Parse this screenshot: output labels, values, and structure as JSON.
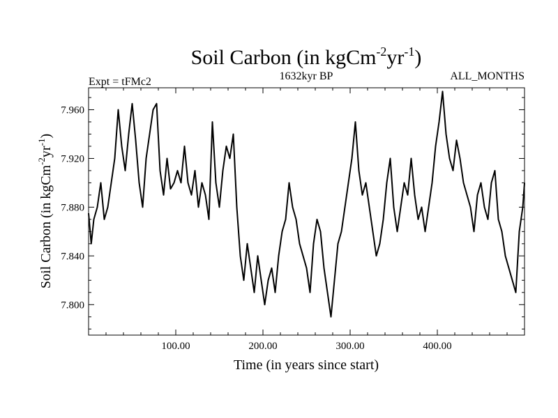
{
  "chart_data": {
    "type": "line",
    "title": "Soil Carbon (in kgCm",
    "title_sup1": "-2",
    "title_mid": "yr",
    "title_sup2": "-1",
    "title_end": ")",
    "subtitle_left": "Expt = tFMc2",
    "subtitle_center": "1632kyr BP",
    "subtitle_right": "ALL_MONTHS",
    "xlabel": "Time (in years since start)",
    "ylabel": "Soil Carbon (in kgCm",
    "ylabel_sup1": "-2",
    "ylabel_mid": "yr",
    "ylabel_sup2": "-1",
    "ylabel_end": ")",
    "xlim": [
      0,
      500
    ],
    "ylim": [
      7.775,
      7.978
    ],
    "x_ticks": [
      100,
      200,
      300,
      400
    ],
    "x_tick_labels": [
      "100.00",
      "200.00",
      "300.00",
      "400.00"
    ],
    "y_ticks": [
      7.8,
      7.84,
      7.88,
      7.92,
      7.96
    ],
    "y_tick_labels": [
      "7.800",
      "7.840",
      "7.880",
      "7.920",
      "7.960"
    ],
    "line_color": "#000000",
    "series": [
      {
        "name": "Soil Carbon",
        "x": [
          0,
          3,
          6,
          10,
          14,
          18,
          22,
          26,
          30,
          34,
          38,
          42,
          46,
          50,
          54,
          58,
          62,
          66,
          70,
          74,
          78,
          82,
          86,
          90,
          94,
          98,
          102,
          106,
          110,
          114,
          118,
          122,
          126,
          130,
          134,
          138,
          142,
          146,
          150,
          154,
          158,
          162,
          166,
          170,
          174,
          178,
          182,
          186,
          190,
          194,
          198,
          202,
          206,
          210,
          214,
          218,
          222,
          226,
          230,
          234,
          238,
          242,
          246,
          250,
          254,
          258,
          262,
          266,
          270,
          274,
          278,
          282,
          286,
          290,
          294,
          298,
          302,
          306,
          310,
          314,
          318,
          322,
          326,
          330,
          334,
          338,
          342,
          346,
          350,
          354,
          358,
          362,
          366,
          370,
          374,
          378,
          382,
          386,
          390,
          394,
          398,
          402,
          406,
          410,
          414,
          418,
          422,
          426,
          430,
          434,
          438,
          442,
          446,
          450,
          454,
          458,
          462,
          466,
          470,
          474,
          478,
          482,
          486,
          490,
          494,
          498,
          500
        ],
        "values": [
          7.875,
          7.85,
          7.87,
          7.88,
          7.9,
          7.87,
          7.88,
          7.9,
          7.92,
          7.96,
          7.93,
          7.91,
          7.94,
          7.965,
          7.935,
          7.9,
          7.88,
          7.92,
          7.94,
          7.96,
          7.965,
          7.91,
          7.89,
          7.92,
          7.895,
          7.9,
          7.91,
          7.9,
          7.93,
          7.9,
          7.89,
          7.91,
          7.88,
          7.9,
          7.89,
          7.87,
          7.95,
          7.9,
          7.88,
          7.91,
          7.93,
          7.92,
          7.94,
          7.88,
          7.84,
          7.82,
          7.85,
          7.83,
          7.81,
          7.84,
          7.82,
          7.8,
          7.82,
          7.83,
          7.81,
          7.84,
          7.86,
          7.87,
          7.9,
          7.88,
          7.87,
          7.85,
          7.84,
          7.83,
          7.81,
          7.85,
          7.87,
          7.86,
          7.83,
          7.81,
          7.79,
          7.82,
          7.85,
          7.86,
          7.88,
          7.9,
          7.92,
          7.95,
          7.91,
          7.89,
          7.9,
          7.88,
          7.86,
          7.84,
          7.85,
          7.87,
          7.9,
          7.92,
          7.88,
          7.86,
          7.88,
          7.9,
          7.89,
          7.92,
          7.89,
          7.87,
          7.88,
          7.86,
          7.88,
          7.9,
          7.93,
          7.95,
          7.975,
          7.94,
          7.92,
          7.91,
          7.935,
          7.92,
          7.9,
          7.89,
          7.88,
          7.86,
          7.89,
          7.9,
          7.88,
          7.87,
          7.9,
          7.91,
          7.87,
          7.86,
          7.84,
          7.83,
          7.82,
          7.81,
          7.86,
          7.88,
          7.9
        ]
      }
    ]
  }
}
